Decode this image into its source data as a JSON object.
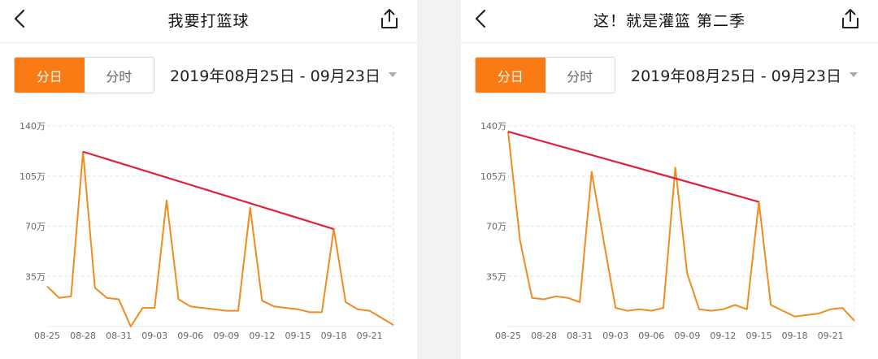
{
  "panels": [
    {
      "title": "我要打篮球",
      "tabs": {
        "day": "分日",
        "hour": "分时"
      },
      "date_range": "2019年08月25日 - 09月23日",
      "icons": {
        "back": "back-arrow-icon",
        "share": "share-icon",
        "dropdown": "caret-down-icon"
      },
      "chart_data": {
        "type": "line",
        "title": "",
        "xlabel": "",
        "ylabel": "",
        "ylim": [
          0,
          1400000
        ],
        "y_ticks": [
          "35万",
          "70万",
          "105万",
          "140万"
        ],
        "y_tick_values": [
          350000,
          700000,
          1050000,
          1400000
        ],
        "x_tick_labels": [
          "08-25",
          "08-28",
          "08-31",
          "09-03",
          "09-06",
          "09-09",
          "09-12",
          "09-15",
          "09-18",
          "09-21"
        ],
        "x": [
          "08-25",
          "08-26",
          "08-27",
          "08-28",
          "08-29",
          "08-30",
          "08-31",
          "09-01",
          "09-02",
          "09-03",
          "09-04",
          "09-05",
          "09-06",
          "09-07",
          "09-08",
          "09-09",
          "09-10",
          "09-11",
          "09-12",
          "09-13",
          "09-14",
          "09-15",
          "09-16",
          "09-17",
          "09-18",
          "09-19",
          "09-20",
          "09-21",
          "09-22",
          "09-23"
        ],
        "series": [
          {
            "color": "#f08c1e",
            "values": [
              280000,
              200000,
              210000,
              1220000,
              270000,
              200000,
              190000,
              0,
              130000,
              130000,
              880000,
              190000,
              140000,
              130000,
              120000,
              110000,
              110000,
              830000,
              180000,
              140000,
              130000,
              120000,
              100000,
              100000,
              680000,
              170000,
              120000,
              110000,
              60000,
              10000
            ]
          }
        ],
        "trend_line": {
          "color": "#e0213a",
          "from": {
            "x": "08-28",
            "y": 1220000
          },
          "to": {
            "x": "09-18",
            "y": 680000
          }
        },
        "grid": true
      }
    },
    {
      "title": "这！就是灌篮 第二季",
      "tabs": {
        "day": "分日",
        "hour": "分时"
      },
      "date_range": "2019年08月25日 - 09月23日",
      "icons": {
        "back": "back-arrow-icon",
        "share": "share-icon",
        "dropdown": "caret-down-icon"
      },
      "chart_data": {
        "type": "line",
        "title": "",
        "xlabel": "",
        "ylabel": "",
        "ylim": [
          0,
          1400000
        ],
        "y_ticks": [
          "35万",
          "70万",
          "105万",
          "140万"
        ],
        "y_tick_values": [
          350000,
          700000,
          1050000,
          1400000
        ],
        "x_tick_labels": [
          "08-25",
          "08-28",
          "08-31",
          "09-03",
          "09-06",
          "09-09",
          "09-12",
          "09-15",
          "09-18",
          "09-21"
        ],
        "x": [
          "08-25",
          "08-26",
          "08-27",
          "08-28",
          "08-29",
          "08-30",
          "08-31",
          "09-01",
          "09-02",
          "09-03",
          "09-04",
          "09-05",
          "09-06",
          "09-07",
          "09-08",
          "09-09",
          "09-10",
          "09-11",
          "09-12",
          "09-13",
          "09-14",
          "09-15",
          "09-16",
          "09-17",
          "09-18",
          "09-19",
          "09-20",
          "09-21",
          "09-22",
          "09-23"
        ],
        "series": [
          {
            "color": "#f08c1e",
            "values": [
              1360000,
              600000,
              200000,
              190000,
              210000,
              200000,
              170000,
              1080000,
              600000,
              130000,
              110000,
              120000,
              110000,
              130000,
              1110000,
              370000,
              120000,
              110000,
              120000,
              150000,
              120000,
              870000,
              150000,
              110000,
              70000,
              80000,
              90000,
              120000,
              130000,
              40000
            ]
          }
        ],
        "trend_line": {
          "color": "#e0213a",
          "from": {
            "x": "08-25",
            "y": 1360000
          },
          "to": {
            "x": "09-15",
            "y": 870000
          }
        },
        "grid": true
      }
    }
  ]
}
